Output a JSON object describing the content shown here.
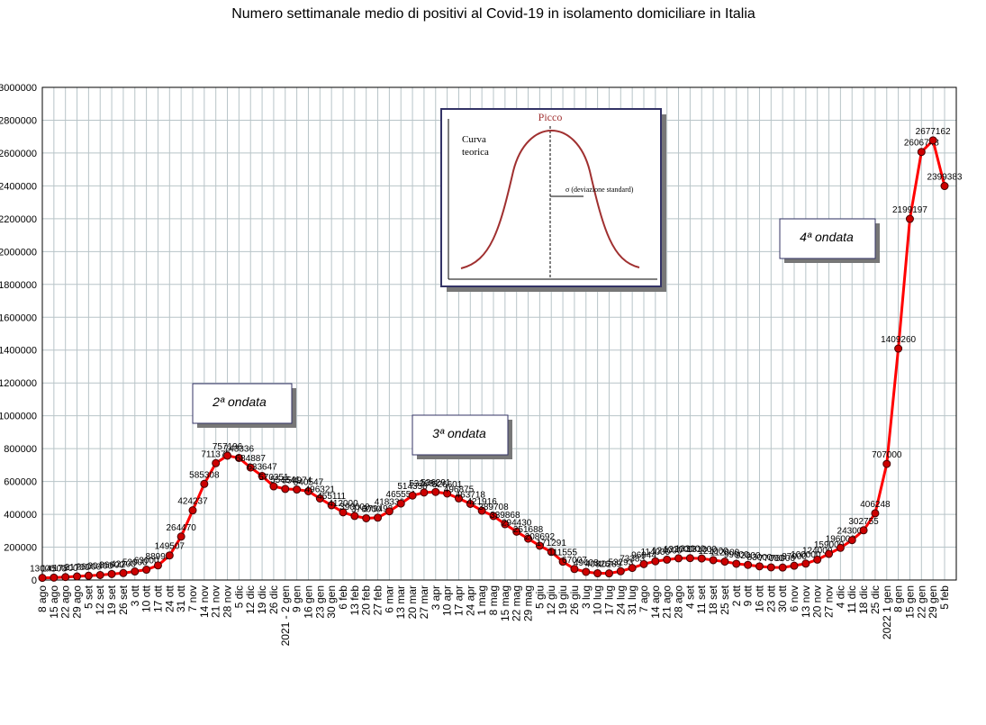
{
  "chart_data": {
    "type": "line",
    "title": "Numero settimanale medio di positivi al Covid-19  in isolamento domiciliare in Italia",
    "categories": [
      "8 ago",
      "15 ago",
      "22 ago",
      "29 ago",
      "5 set",
      "12 set",
      "19 set",
      "26 set",
      "3 ott",
      "10 ott",
      "17 ott",
      "24 ott",
      "31 ott",
      "7 nov",
      "14 nov",
      "21 nov",
      "28 nov",
      "5 dic",
      "12 dic",
      "19 dic",
      "26 dic",
      "2021 - 2 gen",
      "9 gen",
      "16 gen",
      "23 gen",
      "30 gen",
      "6 feb",
      "13 feb",
      "20 feb",
      "27 feb",
      "6 mar",
      "13 mar",
      "20 mar",
      "27 mar",
      "3 apr",
      "10 apr",
      "17 apr",
      "24 apr",
      "1 mag",
      "8 mag",
      "15 mag",
      "22 mag",
      "29 mag",
      "5 giu",
      "12 giu",
      "19 giu",
      "26 giu",
      "3 lug",
      "10 lug",
      "17 lug",
      "24 lug",
      "31 lug",
      "7 ago",
      "14 ago",
      "21 ago",
      "28 ago",
      "4 set",
      "11 set",
      "18 set",
      "25 set",
      "2 ott",
      "9 ott",
      "16 ott",
      "23 ott",
      "30 ott",
      "6 nov",
      "13 nov",
      "20 nov",
      "27 nov",
      "4 dic",
      "11 dic",
      "18 dic",
      "25 dic",
      "2022 1 gen",
      "8 gen",
      "15 gen",
      "22 gen",
      "29 gen",
      "5 feb"
    ],
    "series": [
      {
        "name": "Positivi in isolamento domiciliare",
        "color": "#ff0000",
        "marker_color": "#cc0000",
        "values": [
          13000,
          14500,
          17800,
          21700,
          26000,
          30400,
          36600,
          42200,
          52000,
          63000,
          88995,
          149507,
          264470,
          424237,
          585308,
          711375,
          757196,
          743336,
          684887,
          633647,
          570351,
          554541,
          550974,
          540547,
          496321,
          455111,
          412000,
          390000,
          376000,
          379493,
          418336,
          465551,
          514358,
          532681,
          536291,
          526601,
          496875,
          463718,
          421916,
          389708,
          339868,
          294430,
          251688,
          208692,
          171291,
          111555,
          67007,
          49408,
          40826,
          40289,
          53293,
          73383,
          96944,
          114000,
          124000,
          132000,
          133000,
          131000,
          121000,
          112000,
          99000,
          92000,
          83000,
          77000,
          76000,
          87000,
          100000,
          124000,
          159000,
          196000,
          243003,
          302755,
          406248,
          707000,
          1409260,
          2199197,
          2606748,
          2677162,
          2399383
        ]
      }
    ],
    "ylim": [
      0,
      3000000
    ],
    "yticks": [
      0,
      200000,
      400000,
      600000,
      800000,
      1000000,
      1200000,
      1400000,
      1600000,
      1800000,
      2000000,
      2200000,
      2400000,
      2600000,
      2800000,
      3000000
    ],
    "grid": true,
    "annotations": [
      "2ª ondata",
      "3ª ondata",
      "4ª ondata"
    ],
    "inset": {
      "peak": "Picco",
      "curve": "Curva teorica",
      "sigma": "σ  (deviazione standard)"
    }
  }
}
